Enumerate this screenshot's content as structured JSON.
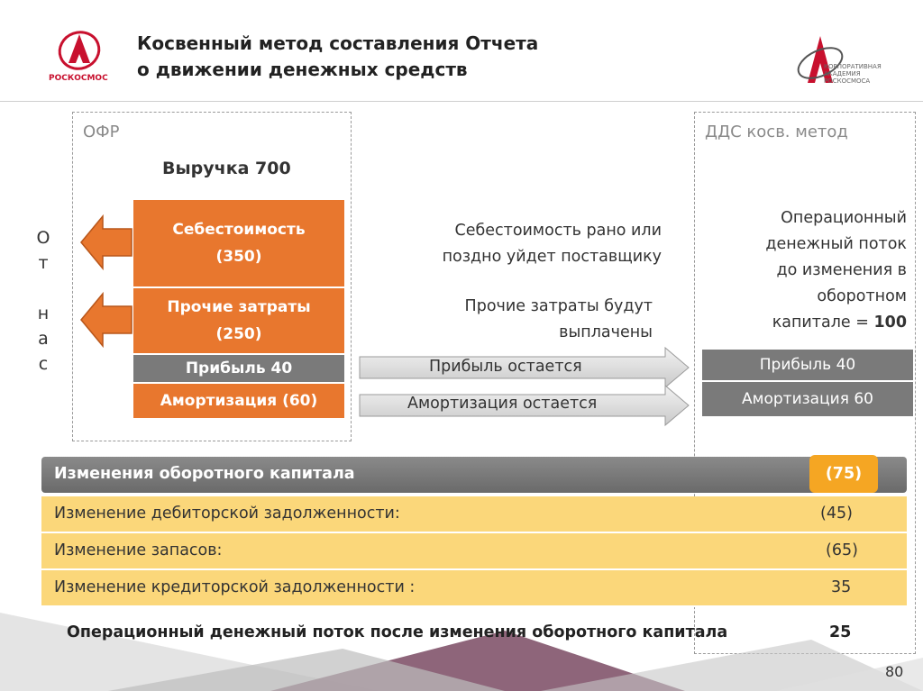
{
  "header": {
    "logo_left_text": "РОСКОСМОС",
    "title_line1": "Косвенный метод составления Отчета",
    "title_line2": "о движении денежных средств",
    "logo_right_line1": "КОРПОРАТИВНАЯ",
    "logo_right_line2": "АКАДЕМИЯ",
    "logo_right_line3": "РОСКОСМОСА"
  },
  "ofr": {
    "label": "ОФР",
    "revenue": "Выручка 700",
    "cost_title": "Себестоимость",
    "cost_value": "(350)",
    "other_title": "Прочие затраты",
    "other_value": "(250)",
    "profit": "Прибыль 40",
    "amort": "Амортизация (60)",
    "vertical": [
      "О",
      "т",
      "",
      "н",
      "а",
      "с"
    ]
  },
  "middle": {
    "cost_note_1": "Себестоимость рано или",
    "cost_note_2": "поздно уйдет поставщику",
    "other_note_1": "Прочие затраты будут",
    "other_note_2": "выплачены",
    "profit_arrow": "Прибыль остается",
    "amort_arrow": "Амортизация остается"
  },
  "dds": {
    "label": "ДДС косв. метод",
    "op_line1": "Операционный",
    "op_line2": "денежный поток",
    "op_line3": "до изменения в",
    "op_line4": "оборотном",
    "op_line5": "капитале = ",
    "op_value": "100",
    "profit": "Прибыль 40",
    "amort": "Амортизация 60"
  },
  "working_capital": {
    "header_label": "Изменения оборотного капитала",
    "header_value": "(75)",
    "rows": [
      {
        "label": "Изменение дебиторской задолженности:",
        "value": "(45)"
      },
      {
        "label": "Изменение запасов:",
        "value": "(65)"
      },
      {
        "label": "Изменение кредиторской задолженности :",
        "value": "35"
      }
    ]
  },
  "footer": {
    "summary_label": "Операционный денежный поток после изменения оборотного капитала",
    "summary_value": "25",
    "page_number": "80"
  },
  "colors": {
    "orange": "#e8772e",
    "gray": "#7a7a7a",
    "yellow": "#fbd77a",
    "accent_orange": "#f5a623",
    "logo_red": "#c8102e"
  }
}
